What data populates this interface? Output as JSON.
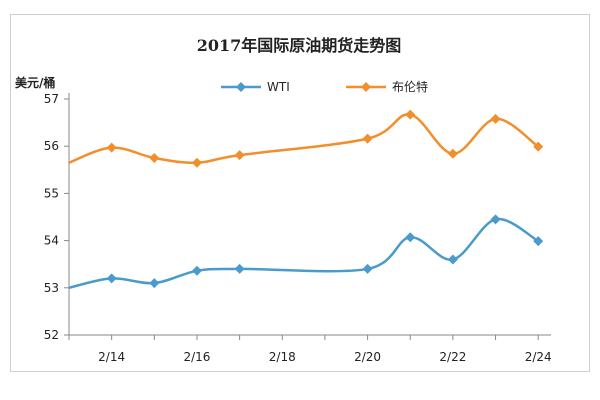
{
  "chart_data": {
    "type": "line",
    "title": "2017年国际原油期货走势图",
    "ylabel": "美元/桶",
    "xlabel": "",
    "ylim": [
      52,
      57
    ],
    "yticks": [
      52,
      53,
      54,
      55,
      56,
      57
    ],
    "x_ticks": [
      "2/14",
      "2/16",
      "2/18",
      "2/20",
      "2/22",
      "2/24"
    ],
    "x_range": [
      "2/13",
      "2/24.3"
    ],
    "grid": false,
    "legend": "top",
    "series": [
      {
        "name": "WTI",
        "color": "#4A9BCB",
        "marker": "diamond",
        "points": [
          {
            "x": "2/13",
            "y": 53.0
          },
          {
            "x": "2/14",
            "y": 53.2
          },
          {
            "x": "2/15",
            "y": 53.1
          },
          {
            "x": "2/16",
            "y": 53.36
          },
          {
            "x": "2/17",
            "y": 53.4
          },
          {
            "x": "2/20",
            "y": 53.4
          },
          {
            "x": "2/21",
            "y": 54.07
          },
          {
            "x": "2/22",
            "y": 53.6
          },
          {
            "x": "2/23",
            "y": 54.45
          },
          {
            "x": "2/24",
            "y": 53.99
          }
        ]
      },
      {
        "name": "布伦特",
        "color": "#F28E2B",
        "marker": "diamond",
        "points": [
          {
            "x": "2/13",
            "y": 55.65
          },
          {
            "x": "2/14",
            "y": 55.97
          },
          {
            "x": "2/15",
            "y": 55.75
          },
          {
            "x": "2/16",
            "y": 55.65
          },
          {
            "x": "2/17",
            "y": 55.81
          },
          {
            "x": "2/20",
            "y": 56.16
          },
          {
            "x": "2/21",
            "y": 56.67
          },
          {
            "x": "2/22",
            "y": 55.84
          },
          {
            "x": "2/23",
            "y": 56.58
          },
          {
            "x": "2/24",
            "y": 55.99
          }
        ]
      }
    ]
  }
}
